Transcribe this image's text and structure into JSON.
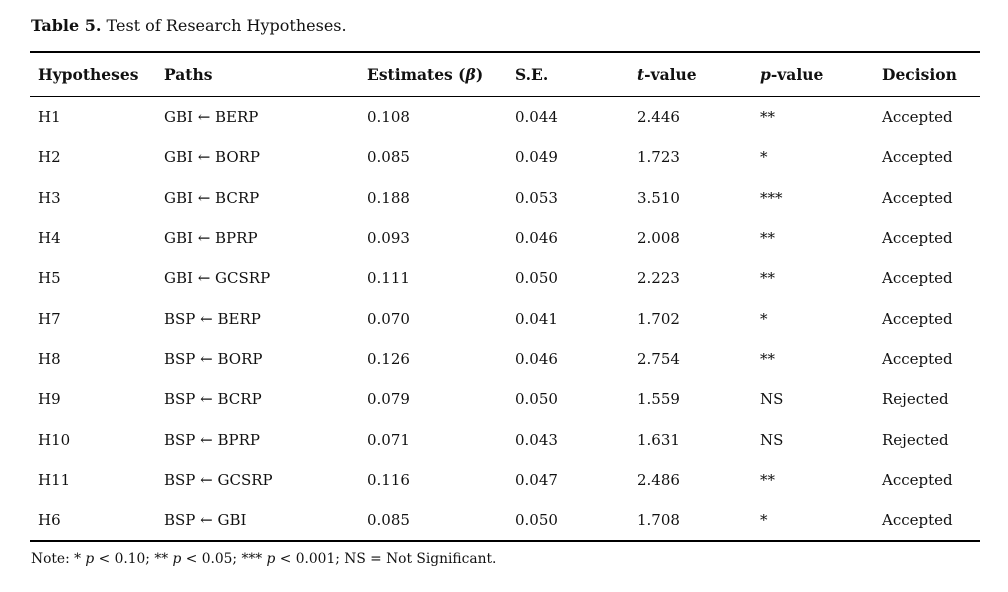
{
  "title": {
    "bold": "Table 5.",
    "rest": " Test of Research Hypotheses."
  },
  "table": {
    "headers": [
      {
        "text": "Hypotheses"
      },
      {
        "text": "Paths"
      },
      {
        "text": "Estimates (",
        "italic": "β",
        "after": ")"
      },
      {
        "text": "S.E."
      },
      {
        "italic": "t",
        "after": "-value"
      },
      {
        "italic": "p",
        "after": "-value"
      },
      {
        "text": "Decision"
      }
    ],
    "rows": [
      {
        "hypothesis": "H1",
        "path": "GBI ← BERP",
        "estimate": "0.108",
        "se": "0.044",
        "t_value": "2.446",
        "p_value": "**",
        "decision": "Accepted"
      },
      {
        "hypothesis": "H2",
        "path": "GBI ← BORP",
        "estimate": "0.085",
        "se": "0.049",
        "t_value": "1.723",
        "p_value": "*",
        "decision": "Accepted"
      },
      {
        "hypothesis": "H3",
        "path": "GBI ← BCRP",
        "estimate": "0.188",
        "se": "0.053",
        "t_value": "3.510",
        "p_value": "***",
        "decision": "Accepted"
      },
      {
        "hypothesis": "H4",
        "path": "GBI ← BPRP",
        "estimate": "0.093",
        "se": "0.046",
        "t_value": "2.008",
        "p_value": "**",
        "decision": "Accepted"
      },
      {
        "hypothesis": "H5",
        "path": "GBI ← GCSRP",
        "estimate": "0.111",
        "se": "0.050",
        "t_value": "2.223",
        "p_value": "**",
        "decision": "Accepted"
      },
      {
        "hypothesis": "H7",
        "path": "BSP ← BERP",
        "estimate": "0.070",
        "se": "0.041",
        "t_value": "1.702",
        "p_value": "*",
        "decision": "Accepted"
      },
      {
        "hypothesis": "H8",
        "path": "BSP ← BORP",
        "estimate": "0.126",
        "se": "0.046",
        "t_value": "2.754",
        "p_value": "**",
        "decision": "Accepted"
      },
      {
        "hypothesis": "H9",
        "path": "BSP ← BCRP",
        "estimate": "0.079",
        "se": "0.050",
        "t_value": "1.559",
        "p_value": "NS",
        "decision": "Rejected"
      },
      {
        "hypothesis": "H10",
        "path": "BSP ← BPRP",
        "estimate": "0.071",
        "se": "0.043",
        "t_value": "1.631",
        "p_value": "NS",
        "decision": "Rejected"
      },
      {
        "hypothesis": "H11",
        "path": "BSP ← GCSRP",
        "estimate": "0.116",
        "se": "0.047",
        "t_value": "2.486",
        "p_value": "**",
        "decision": "Accepted"
      },
      {
        "hypothesis": "H6",
        "path": "BSP ← GBI",
        "estimate": "0.085",
        "se": "0.050",
        "t_value": "1.708",
        "p_value": "*",
        "decision": "Accepted"
      }
    ]
  },
  "note": {
    "seg1": "Note: * ",
    "p1": "p",
    "seg2": " < 0.10; ** ",
    "p2": "p",
    "seg3": " < 0.05; *** ",
    "p3": "p",
    "seg4": " < 0.001; NS = Not Significant."
  },
  "colors": {
    "text": "#111111",
    "rule": "#000000",
    "background": "#ffffff"
  }
}
